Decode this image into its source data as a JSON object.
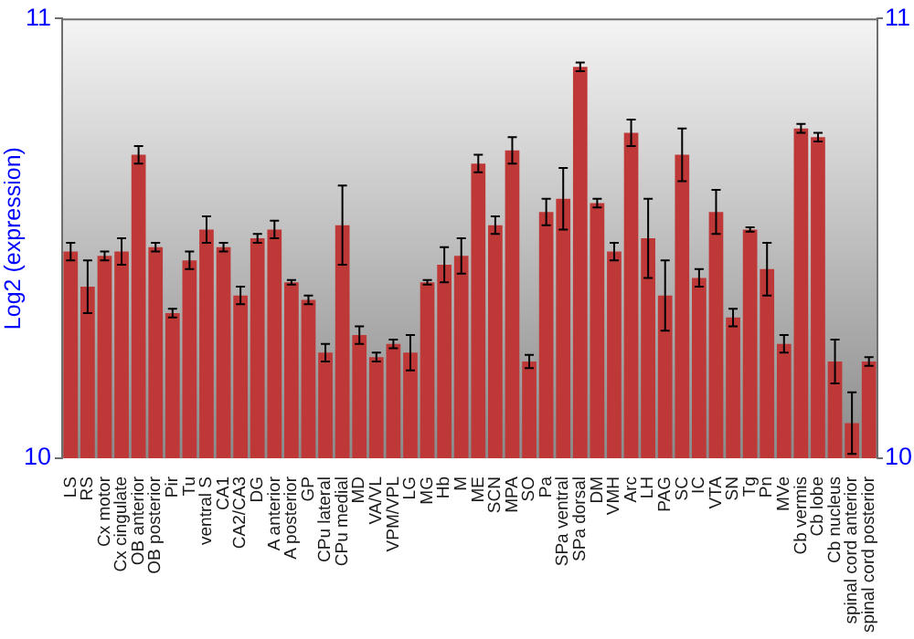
{
  "chart_data": {
    "type": "bar",
    "ylabel": "Log2 (expression)",
    "categories": [
      "LS",
      "RS",
      "Cx motor",
      "Cx cingulate",
      "OB anterior",
      "OB posterior",
      "Pir",
      "Tu",
      "ventral S",
      "CA1",
      "CA2/CA3",
      "DG",
      "A anterior",
      "A posterior",
      "GP",
      "CPu lateral",
      "CPu medial",
      "MD",
      "VA/VL",
      "VPM/VPL",
      "LG",
      "MG",
      "Hb",
      "M",
      "ME",
      "SCN",
      "MPA",
      "SO",
      "Pa",
      "SPa ventral",
      "SPa dorsal",
      "DM",
      "VMH",
      "Arc",
      "LH",
      "PAG",
      "SC",
      "IC",
      "VTA",
      "SN",
      "Tg",
      "Pn",
      "MVe",
      "Cb vermis",
      "Cb lobe",
      "Cb nucleus",
      "spinal cord anterior",
      "spinal cord posterior"
    ],
    "values": [
      10.47,
      10.39,
      10.46,
      10.47,
      10.69,
      10.48,
      10.33,
      10.45,
      10.52,
      10.48,
      10.37,
      10.5,
      10.52,
      10.4,
      10.36,
      10.24,
      10.53,
      10.28,
      10.23,
      10.26,
      10.24,
      10.4,
      10.44,
      10.46,
      10.67,
      10.53,
      10.7,
      10.22,
      10.56,
      10.59,
      10.89,
      10.58,
      10.47,
      10.74,
      10.5,
      10.37,
      10.69,
      10.41,
      10.56,
      10.32,
      10.52,
      10.43,
      10.26,
      10.75,
      10.73,
      10.22,
      10.08,
      10.22
    ],
    "errors": [
      0.02,
      0.06,
      0.01,
      0.03,
      0.02,
      0.01,
      0.01,
      0.02,
      0.03,
      0.01,
      0.02,
      0.01,
      0.02,
      0.005,
      0.01,
      0.02,
      0.09,
      0.02,
      0.01,
      0.01,
      0.04,
      0.005,
      0.04,
      0.04,
      0.02,
      0.02,
      0.03,
      0.015,
      0.03,
      0.07,
      0.01,
      0.01,
      0.02,
      0.03,
      0.09,
      0.08,
      0.06,
      0.02,
      0.05,
      0.02,
      0.005,
      0.06,
      0.02,
      0.01,
      0.01,
      0.05,
      0.07,
      0.01
    ],
    "color": "#bf3838",
    "ylim": [
      10,
      11
    ],
    "yticks": [
      10,
      11
    ],
    "y2lim": [
      10,
      11
    ],
    "y2ticks": [
      10,
      11
    ]
  }
}
